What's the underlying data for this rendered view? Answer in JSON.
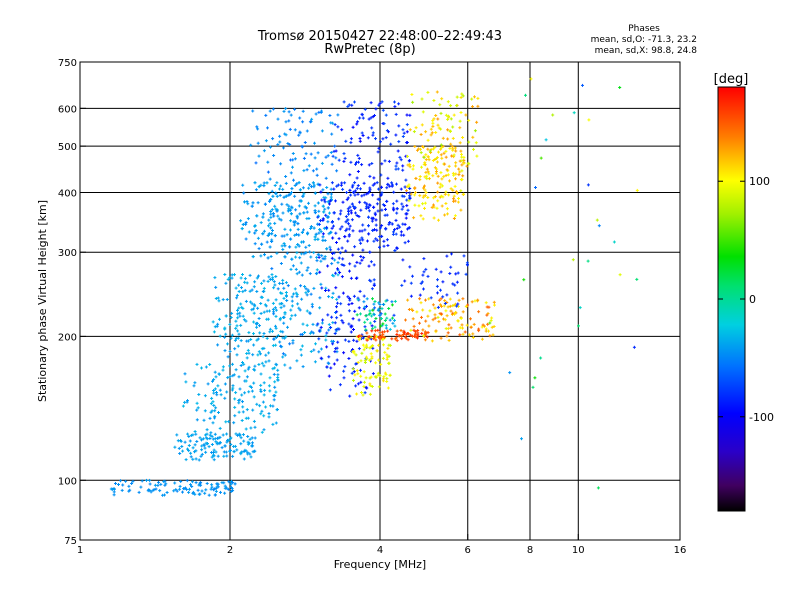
{
  "chart_data": {
    "type": "scatter",
    "title": "Tromsø 20150427 22:48:00–22:49:43",
    "subtitle": "RwPretec (8p)",
    "xlabel": "Frequency [MHz]",
    "ylabel": "Stationary phase Virtual Height [km]",
    "x_scale": "log",
    "y_scale": "log",
    "xlim": [
      1,
      16
    ],
    "ylim": [
      75,
      750
    ],
    "x_ticks": [
      1,
      2,
      4,
      6,
      8,
      10,
      16
    ],
    "x_tick_labels": [
      "1",
      "2",
      "4",
      "6",
      "8",
      "10",
      "16"
    ],
    "y_ticks": [
      75,
      100,
      200,
      300,
      400,
      500,
      600,
      750
    ],
    "y_tick_labels": [
      "75",
      "100",
      "200",
      "300",
      "400",
      "500",
      "600",
      "750"
    ],
    "grid_x": [
      2,
      4,
      6,
      8,
      10
    ],
    "grid_y": [
      100,
      200,
      300,
      400,
      500,
      600
    ],
    "stats": {
      "heading": "Phases",
      "line1": "mean, sd,O:  -71.3, 23.2",
      "line2": "mean, sd,X:  98.8, 24.8"
    },
    "colorbar": {
      "label": "[deg]",
      "range": [
        -180,
        180
      ],
      "ticks": [
        100,
        0,
        -100
      ],
      "tick_labels": [
        "100",
        "0",
        "-100"
      ]
    },
    "color_encodes": "phase [deg]",
    "clusters": [
      {
        "f": [
          1.15,
          2.05
        ],
        "h": [
          93,
          100
        ],
        "phase": [
          -50,
          -40
        ],
        "n": 110
      },
      {
        "f": [
          1.55,
          2.25
        ],
        "h": [
          110,
          125
        ],
        "phase": [
          -45,
          -35
        ],
        "n": 130
      },
      {
        "f": [
          1.6,
          2.5
        ],
        "h": [
          125,
          175
        ],
        "phase": [
          -45,
          -30
        ],
        "n": 150
      },
      {
        "f": [
          1.85,
          2.6
        ],
        "h": [
          170,
          270
        ],
        "phase": [
          -45,
          -30
        ],
        "n": 200
      },
      {
        "f": [
          2.4,
          3.3
        ],
        "h": [
          170,
          300
        ],
        "phase": [
          -55,
          -30
        ],
        "n": 140
      },
      {
        "f": [
          2.1,
          3.2
        ],
        "h": [
          290,
          420
        ],
        "phase": [
          -50,
          -35
        ],
        "n": 320
      },
      {
        "f": [
          2.2,
          3.3
        ],
        "h": [
          420,
          600
        ],
        "phase": [
          -60,
          -40
        ],
        "n": 90
      },
      {
        "f": [
          3.0,
          4.6
        ],
        "h": [
          300,
          420
        ],
        "phase": [
          -95,
          -75
        ],
        "n": 260
      },
      {
        "f": [
          3.2,
          4.6
        ],
        "h": [
          400,
          620
        ],
        "phase": [
          -100,
          -70
        ],
        "n": 110
      },
      {
        "f": [
          3.0,
          3.9
        ],
        "h": [
          150,
          300
        ],
        "phase": [
          -100,
          -75
        ],
        "n": 140
      },
      {
        "f": [
          3.5,
          4.2
        ],
        "h": [
          150,
          200
        ],
        "phase": [
          80,
          110
        ],
        "n": 90
      },
      {
        "f": [
          3.6,
          4.3
        ],
        "h": [
          205,
          240
        ],
        "phase": [
          -80,
          40
        ],
        "n": 60
      },
      {
        "f": [
          4.5,
          5.9
        ],
        "h": [
          350,
          500
        ],
        "phase": [
          90,
          130
        ],
        "n": 160
      },
      {
        "f": [
          4.6,
          6.3
        ],
        "h": [
          450,
          650
        ],
        "phase": [
          70,
          130
        ],
        "n": 90
      },
      {
        "f": [
          3.6,
          5.0
        ],
        "h": [
          196,
          206
        ],
        "phase": [
          140,
          170
        ],
        "n": 70
      },
      {
        "f": [
          4.5,
          6.8
        ],
        "h": [
          195,
          240
        ],
        "phase": [
          90,
          150
        ],
        "n": 120
      },
      {
        "f": [
          4.4,
          6.0
        ],
        "h": [
          230,
          300
        ],
        "phase": [
          -90,
          -75
        ],
        "n": 45
      },
      {
        "f": [
          6.5,
          13.5
        ],
        "h": [
          80,
          700
        ],
        "phase": [
          -100,
          120
        ],
        "n": 30
      }
    ]
  }
}
